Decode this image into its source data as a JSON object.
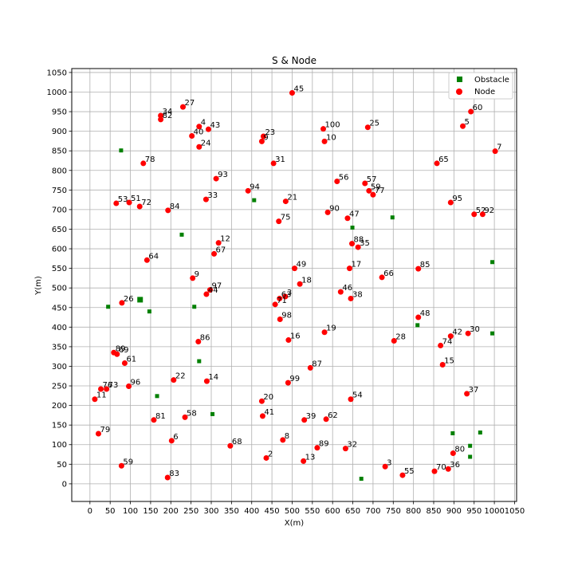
{
  "chart_data": {
    "type": "scatter",
    "title": "S & Node",
    "xlabel": "X(m)",
    "ylabel": "Y(m)",
    "xlim": [
      -45,
      1055
    ],
    "ylim": [
      -45,
      1060
    ],
    "xticks": [
      0,
      50,
      100,
      150,
      200,
      250,
      300,
      350,
      400,
      450,
      500,
      550,
      600,
      650,
      700,
      750,
      800,
      850,
      900,
      950,
      1000,
      1050
    ],
    "yticks": [
      0,
      50,
      100,
      150,
      200,
      250,
      300,
      350,
      400,
      450,
      500,
      550,
      600,
      650,
      700,
      750,
      800,
      850,
      900,
      950,
      1000,
      1050
    ],
    "grid": true,
    "legend": "top-right",
    "series": [
      {
        "name": "Obstacle",
        "marker": "square",
        "color": "#008000",
        "points": [
          {
            "x": 77,
            "y": 851
          },
          {
            "x": 227,
            "y": 636
          },
          {
            "x": 406,
            "y": 724
          },
          {
            "x": 649,
            "y": 654
          },
          {
            "x": 748,
            "y": 680
          },
          {
            "x": 995,
            "y": 566
          },
          {
            "x": 45,
            "y": 452
          },
          {
            "x": 124,
            "y": 470,
            "big": true
          },
          {
            "x": 147,
            "y": 440
          },
          {
            "x": 258,
            "y": 452
          },
          {
            "x": 810,
            "y": 405
          },
          {
            "x": 995,
            "y": 384
          },
          {
            "x": 270,
            "y": 313
          },
          {
            "x": 166,
            "y": 224
          },
          {
            "x": 303,
            "y": 178
          },
          {
            "x": 897,
            "y": 129
          },
          {
            "x": 965,
            "y": 131
          },
          {
            "x": 940,
            "y": 97
          },
          {
            "x": 940,
            "y": 69
          },
          {
            "x": 671,
            "y": 13
          }
        ]
      },
      {
        "name": "Node",
        "marker": "circle",
        "color": "#ff0000",
        "points": [
          {
            "label": "45",
            "x": 500,
            "y": 998
          },
          {
            "label": "27",
            "x": 230,
            "y": 962
          },
          {
            "label": "60",
            "x": 942,
            "y": 950
          },
          {
            "label": "34",
            "x": 175,
            "y": 940
          },
          {
            "label": "82",
            "x": 175,
            "y": 930
          },
          {
            "label": "4",
            "x": 270,
            "y": 912
          },
          {
            "label": "43",
            "x": 293,
            "y": 905
          },
          {
            "label": "5",
            "x": 922,
            "y": 913
          },
          {
            "label": "100",
            "x": 577,
            "y": 906
          },
          {
            "label": "25",
            "x": 687,
            "y": 910
          },
          {
            "label": "40",
            "x": 252,
            "y": 888
          },
          {
            "label": "23",
            "x": 429,
            "y": 887
          },
          {
            "label": "9",
            "x": 425,
            "y": 874
          },
          {
            "label": "10",
            "x": 580,
            "y": 874
          },
          {
            "label": "24",
            "x": 270,
            "y": 860
          },
          {
            "label": "7",
            "x": 1002,
            "y": 849
          },
          {
            "label": "78",
            "x": 132,
            "y": 818
          },
          {
            "label": "31",
            "x": 454,
            "y": 818
          },
          {
            "label": "65",
            "x": 858,
            "y": 818
          },
          {
            "label": "93",
            "x": 312,
            "y": 779
          },
          {
            "label": "56",
            "x": 611,
            "y": 772
          },
          {
            "label": "57",
            "x": 680,
            "y": 767
          },
          {
            "label": "94",
            "x": 391,
            "y": 748
          },
          {
            "label": "59",
            "x": 690,
            "y": 748
          },
          {
            "label": "77",
            "x": 700,
            "y": 738
          },
          {
            "label": "33",
            "x": 287,
            "y": 726
          },
          {
            "label": "21",
            "x": 484,
            "y": 721
          },
          {
            "label": "53",
            "x": 65,
            "y": 716
          },
          {
            "label": "51",
            "x": 97,
            "y": 718
          },
          {
            "label": "72",
            "x": 123,
            "y": 708
          },
          {
            "label": "95",
            "x": 892,
            "y": 718
          },
          {
            "label": "84",
            "x": 193,
            "y": 698
          },
          {
            "label": "90",
            "x": 588,
            "y": 693
          },
          {
            "label": "52",
            "x": 950,
            "y": 688
          },
          {
            "label": "92",
            "x": 971,
            "y": 688
          },
          {
            "label": "47",
            "x": 637,
            "y": 678
          },
          {
            "label": "75",
            "x": 467,
            "y": 670
          },
          {
            "label": "12",
            "x": 318,
            "y": 615
          },
          {
            "label": "88",
            "x": 648,
            "y": 613
          },
          {
            "label": "35",
            "x": 663,
            "y": 604
          },
          {
            "label": "67",
            "x": 307,
            "y": 587
          },
          {
            "label": "64",
            "x": 141,
            "y": 571
          },
          {
            "label": "49",
            "x": 506,
            "y": 550
          },
          {
            "label": "17",
            "x": 642,
            "y": 550
          },
          {
            "label": "85",
            "x": 812,
            "y": 549
          },
          {
            "label": "66",
            "x": 722,
            "y": 527
          },
          {
            "label": "9",
            "x": 254,
            "y": 525
          },
          {
            "label": "18",
            "x": 519,
            "y": 510
          },
          {
            "label": "97",
            "x": 297,
            "y": 495
          },
          {
            "label": "44",
            "x": 288,
            "y": 484
          },
          {
            "label": "46",
            "x": 620,
            "y": 490
          },
          {
            "label": "3",
            "x": 483,
            "y": 478
          },
          {
            "label": "63",
            "x": 469,
            "y": 473
          },
          {
            "label": "38",
            "x": 645,
            "y": 473
          },
          {
            "label": "26",
            "x": 79,
            "y": 462
          },
          {
            "label": "71",
            "x": 458,
            "y": 458
          },
          {
            "label": "48",
            "x": 812,
            "y": 425
          },
          {
            "label": "98",
            "x": 470,
            "y": 420
          },
          {
            "label": "19",
            "x": 580,
            "y": 387
          },
          {
            "label": "42",
            "x": 892,
            "y": 377
          },
          {
            "label": "30",
            "x": 935,
            "y": 384
          },
          {
            "label": "16",
            "x": 491,
            "y": 367
          },
          {
            "label": "28",
            "x": 752,
            "y": 365
          },
          {
            "label": "86",
            "x": 268,
            "y": 363
          },
          {
            "label": "74",
            "x": 867,
            "y": 353
          },
          {
            "label": "89",
            "x": 59,
            "y": 335
          },
          {
            "label": "69",
            "x": 67,
            "y": 331
          },
          {
            "label": "61",
            "x": 86,
            "y": 308
          },
          {
            "label": "15",
            "x": 872,
            "y": 304
          },
          {
            "label": "87",
            "x": 545,
            "y": 296
          },
          {
            "label": "22",
            "x": 207,
            "y": 265
          },
          {
            "label": "14",
            "x": 289,
            "y": 262
          },
          {
            "label": "99",
            "x": 490,
            "y": 258
          },
          {
            "label": "96",
            "x": 96,
            "y": 249
          },
          {
            "label": "76",
            "x": 27,
            "y": 242
          },
          {
            "label": "73",
            "x": 41,
            "y": 242
          },
          {
            "label": "37",
            "x": 932,
            "y": 230
          },
          {
            "label": "11",
            "x": 12,
            "y": 216
          },
          {
            "label": "54",
            "x": 645,
            "y": 216
          },
          {
            "label": "20",
            "x": 425,
            "y": 211
          },
          {
            "label": "41",
            "x": 427,
            "y": 173
          },
          {
            "label": "58",
            "x": 235,
            "y": 170
          },
          {
            "label": "81",
            "x": 158,
            "y": 163
          },
          {
            "label": "39",
            "x": 530,
            "y": 163
          },
          {
            "label": "62",
            "x": 584,
            "y": 165
          },
          {
            "label": "79",
            "x": 21,
            "y": 128
          },
          {
            "label": "6",
            "x": 202,
            "y": 110
          },
          {
            "label": "8",
            "x": 477,
            "y": 112
          },
          {
            "label": "68",
            "x": 347,
            "y": 97
          },
          {
            "label": "89",
            "x": 562,
            "y": 92
          },
          {
            "label": "32",
            "x": 632,
            "y": 90
          },
          {
            "label": "80",
            "x": 898,
            "y": 78
          },
          {
            "label": "2",
            "x": 436,
            "y": 66
          },
          {
            "label": "13",
            "x": 528,
            "y": 58
          },
          {
            "label": "59",
            "x": 78,
            "y": 46
          },
          {
            "label": "3",
            "x": 730,
            "y": 44
          },
          {
            "label": "70",
            "x": 852,
            "y": 32
          },
          {
            "label": "36",
            "x": 886,
            "y": 38
          },
          {
            "label": "55",
            "x": 773,
            "y": 22
          },
          {
            "label": "83",
            "x": 192,
            "y": 16
          }
        ]
      }
    ]
  }
}
